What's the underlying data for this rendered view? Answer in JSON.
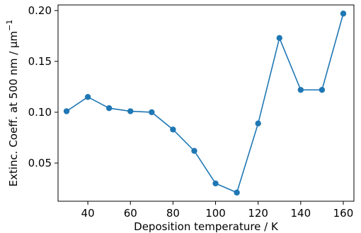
{
  "chart_data": {
    "type": "line",
    "title": "",
    "xlabel": "Deposition temperature / K",
    "ylabel_main": "Extinc. Coeff. at 500 nm / μm",
    "ylabel_sup": "−1",
    "xlim": [
      26,
      165
    ],
    "ylim": [
      0.0125,
      0.2055
    ],
    "x_ticks": [
      40,
      60,
      80,
      100,
      120,
      140,
      160
    ],
    "y_ticks": [
      0.05,
      0.1,
      0.15,
      0.2
    ],
    "x_tick_labels": [
      "40",
      "60",
      "80",
      "100",
      "120",
      "140",
      "160"
    ],
    "y_tick_labels": [
      "0.05",
      "0.10",
      "0.15",
      "0.20"
    ],
    "grid": false,
    "series": [
      {
        "color": "#1f77b4",
        "marker": "circle",
        "x": [
          30,
          40,
          50,
          60,
          70,
          80,
          90,
          100,
          110,
          120,
          130,
          140,
          150,
          160
        ],
        "y": [
          0.101,
          0.115,
          0.104,
          0.101,
          0.1,
          0.083,
          0.062,
          0.03,
          0.021,
          0.089,
          0.173,
          0.122,
          0.122,
          0.197
        ]
      }
    ]
  }
}
